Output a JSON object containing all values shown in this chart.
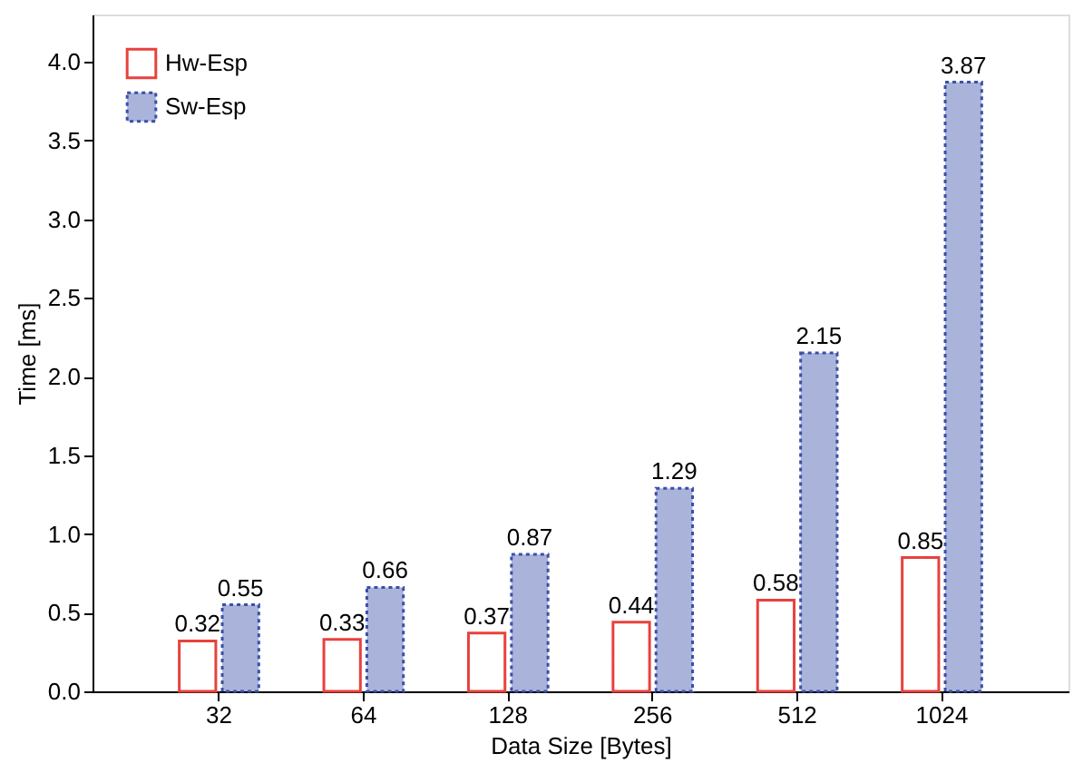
{
  "chart_data": {
    "type": "bar",
    "xlabel": "Data Size [Bytes]",
    "ylabel": "Time [ms]",
    "categories": [
      "32",
      "64",
      "128",
      "256",
      "512",
      "1024"
    ],
    "series": [
      {
        "name": "Hw-Esp",
        "color": "#e8413c",
        "values": [
          0.32,
          0.33,
          0.37,
          0.44,
          0.58,
          0.85
        ]
      },
      {
        "name": "Sw-Esp",
        "color": "#aab4da",
        "values": [
          0.55,
          0.66,
          0.87,
          1.29,
          2.15,
          3.87
        ]
      }
    ],
    "ylim": [
      0,
      4.3
    ],
    "yticks": [
      {
        "value": 0,
        "label": "0.0"
      },
      0.5,
      {
        "value": 1,
        "label": "1.0"
      },
      1.5,
      {
        "value": 2,
        "label": "2.0"
      },
      2.5,
      {
        "value": 3,
        "label": "3.0"
      },
      3.5,
      {
        "value": 4,
        "label": "4.0"
      }
    ],
    "data_labels": true,
    "legend": "top left",
    "grid": false
  }
}
